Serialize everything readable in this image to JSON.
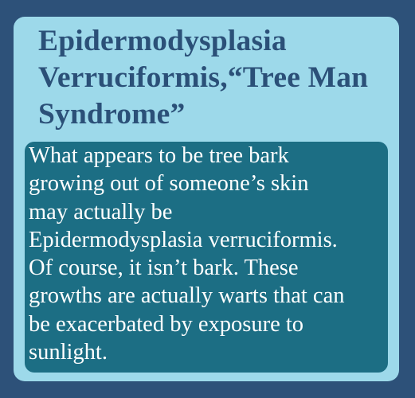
{
  "slide": {
    "title": "Epidermodysplasia Verruciformis,“Tree Man Syndrome”",
    "body": "What appears to be tree bark\ngrowing out of someone’s skin\nmay actually be\nEpidermodysplasia verruciformis.\nOf course, it isn’t bark. These\ngrowths are actually warts that can\nbe exacerbated by exposure to\nsunlight."
  },
  "colors": {
    "background": "#2d5179",
    "card": "#9dd9ea",
    "title_text": "#2b5078",
    "body_box": "#1c6e84",
    "body_text": "#ffffff"
  }
}
